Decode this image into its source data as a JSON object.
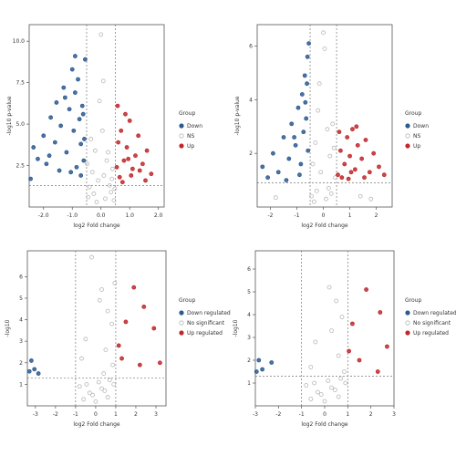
{
  "chart_data": [
    {
      "type": "scatter",
      "title": "",
      "xlabel": "log2 Fold change",
      "ylabel": "-log10 p-value",
      "xlim": [
        -2.5,
        2.2
      ],
      "ylim": [
        0,
        11
      ],
      "xticks": [
        -2.0,
        -1.0,
        0.0,
        1.0,
        2.0
      ],
      "xtick_labels": [
        "-2.0",
        "-1.0",
        "0.0",
        "1.0",
        "2.0"
      ],
      "yticks": [
        2.5,
        5,
        7.5,
        10
      ],
      "ytick_labels": [
        "2.5",
        "5.0",
        "7.5",
        "10.0"
      ],
      "thresholds": {
        "fc_low": -0.5,
        "fc_high": 0.5,
        "y": 1.3
      },
      "legend_title": "Group",
      "legend_position": "right",
      "series": [
        {
          "name": "Down",
          "color": "#2d5a91",
          "points": [
            [
              -2.35,
              3.6
            ],
            [
              -2.2,
              2.9
            ],
            [
              -2.0,
              4.3
            ],
            [
              -1.9,
              2.6
            ],
            [
              -1.75,
              5.4
            ],
            [
              -1.6,
              3.9
            ],
            [
              -1.55,
              6.3
            ],
            [
              -1.4,
              4.9
            ],
            [
              -1.3,
              7.2
            ],
            [
              -1.2,
              3.3
            ],
            [
              -1.1,
              5.9
            ],
            [
              -1.0,
              8.3
            ],
            [
              -0.95,
              4.6
            ],
            [
              -0.9,
              6.9
            ],
            [
              -0.85,
              2.4
            ],
            [
              -0.8,
              7.7
            ],
            [
              -0.75,
              5.3
            ],
            [
              -0.7,
              3.8
            ],
            [
              -0.65,
              6.1
            ],
            [
              -0.6,
              2.8
            ],
            [
              -0.58,
              4.1
            ],
            [
              -0.55,
              8.9
            ],
            [
              -1.45,
              2.2
            ],
            [
              -1.05,
              2.1
            ],
            [
              -0.7,
              1.9
            ],
            [
              -1.8,
              3.1
            ],
            [
              -1.25,
              6.6
            ],
            [
              -0.9,
              9.1
            ],
            [
              -2.45,
              1.7
            ],
            [
              -0.62,
              5.6
            ]
          ]
        },
        {
          "name": "NS",
          "color": "#b7b7b7",
          "points": [
            [
              -0.4,
              1.2
            ],
            [
              -0.3,
              2.1
            ],
            [
              -0.2,
              3.4
            ],
            [
              -0.1,
              1.6
            ],
            [
              0.0,
              10.4
            ],
            [
              0.05,
              4.6
            ],
            [
              0.1,
              1.9
            ],
            [
              0.2,
              2.8
            ],
            [
              0.3,
              1.3
            ],
            [
              0.4,
              2.3
            ],
            [
              -0.45,
              0.6
            ],
            [
              -0.25,
              0.8
            ],
            [
              0.15,
              0.5
            ],
            [
              0.35,
              0.9
            ],
            [
              -0.05,
              6.4
            ],
            [
              0.45,
              0.4
            ],
            [
              -0.35,
              4.1
            ],
            [
              0.25,
              3.3
            ],
            [
              -0.15,
              0.3
            ],
            [
              0.08,
              7.6
            ],
            [
              0.38,
              1.7
            ],
            [
              -0.48,
              2.6
            ],
            [
              0.48,
              1.1
            ]
          ]
        },
        {
          "name": "Up",
          "color": "#c0282b",
          "points": [
            [
              0.55,
              2.4
            ],
            [
              0.6,
              3.9
            ],
            [
              0.7,
              4.6
            ],
            [
              0.8,
              2.8
            ],
            [
              0.9,
              3.6
            ],
            [
              1.0,
              5.2
            ],
            [
              1.1,
              2.3
            ],
            [
              1.2,
              3.1
            ],
            [
              1.3,
              4.3
            ],
            [
              1.45,
              2.6
            ],
            [
              1.6,
              3.4
            ],
            [
              1.75,
              2.0
            ],
            [
              0.65,
              1.8
            ],
            [
              0.85,
              5.6
            ],
            [
              1.05,
              1.9
            ],
            [
              1.35,
              2.2
            ],
            [
              0.58,
              6.1
            ],
            [
              0.95,
              2.9
            ],
            [
              1.55,
              1.6
            ],
            [
              0.75,
              1.5
            ]
          ]
        }
      ]
    },
    {
      "type": "scatter",
      "title": "",
      "xlabel": "log2 Fold change",
      "ylabel": "-log10 p-value",
      "xlim": [
        -2.5,
        2.6
      ],
      "ylim": [
        0,
        6.8
      ],
      "xticks": [
        -2,
        -1,
        0,
        1,
        2
      ],
      "xtick_labels": [
        "-2",
        "-1",
        "0",
        "1",
        "2"
      ],
      "yticks": [
        2,
        4,
        6
      ],
      "ytick_labels": [
        "2",
        "4",
        "6"
      ],
      "thresholds": {
        "fc_low": -0.5,
        "fc_high": 0.5,
        "y": 0.9
      },
      "legend_title": "Group",
      "legend_position": "right",
      "series": [
        {
          "name": "Down",
          "color": "#2d5a91",
          "points": [
            [
              -2.3,
              1.5
            ],
            [
              -2.1,
              1.1
            ],
            [
              -1.9,
              2.0
            ],
            [
              -1.7,
              1.3
            ],
            [
              -1.5,
              2.6
            ],
            [
              -1.3,
              1.8
            ],
            [
              -1.2,
              3.1
            ],
            [
              -1.05,
              2.3
            ],
            [
              -0.95,
              3.7
            ],
            [
              -0.85,
              1.6
            ],
            [
              -0.8,
              4.2
            ],
            [
              -0.75,
              2.8
            ],
            [
              -0.7,
              4.9
            ],
            [
              -0.65,
              3.3
            ],
            [
              -0.6,
              5.6
            ],
            [
              -0.58,
              2.1
            ],
            [
              -0.55,
              6.1
            ],
            [
              -0.9,
              1.2
            ],
            [
              -1.4,
              1.0
            ],
            [
              -0.68,
              3.9
            ],
            [
              -1.1,
              2.6
            ],
            [
              -0.62,
              4.6
            ]
          ]
        },
        {
          "name": "NS",
          "color": "#b7b7b7",
          "points": [
            [
              -0.4,
              1.6
            ],
            [
              -0.3,
              2.4
            ],
            [
              -0.2,
              3.6
            ],
            [
              -0.1,
              1.3
            ],
            [
              0.0,
              6.5
            ],
            [
              0.05,
              5.9
            ],
            [
              0.15,
              2.9
            ],
            [
              0.25,
              1.9
            ],
            [
              0.35,
              3.1
            ],
            [
              0.45,
              1.1
            ],
            [
              -0.45,
              0.4
            ],
            [
              -0.25,
              0.6
            ],
            [
              0.1,
              0.3
            ],
            [
              0.3,
              0.5
            ],
            [
              -0.15,
              4.6
            ],
            [
              0.4,
              2.2
            ],
            [
              -0.35,
              0.2
            ],
            [
              0.2,
              0.7
            ],
            [
              1.4,
              0.4
            ],
            [
              1.8,
              0.3
            ],
            [
              -1.8,
              0.35
            ]
          ]
        },
        {
          "name": "Up",
          "color": "#c0282b",
          "points": [
            [
              0.55,
              1.2
            ],
            [
              0.65,
              2.1
            ],
            [
              0.8,
              1.6
            ],
            [
              0.9,
              2.6
            ],
            [
              1.0,
              1.9
            ],
            [
              1.1,
              2.9
            ],
            [
              1.2,
              1.4
            ],
            [
              1.3,
              2.3
            ],
            [
              1.45,
              1.8
            ],
            [
              1.6,
              2.5
            ],
            [
              1.75,
              1.3
            ],
            [
              1.9,
              2.0
            ],
            [
              2.1,
              1.5
            ],
            [
              0.7,
              1.1
            ],
            [
              1.05,
              1.3
            ],
            [
              1.55,
              1.1
            ],
            [
              0.6,
              2.8
            ],
            [
              1.25,
              3.0
            ],
            [
              2.3,
              1.2
            ],
            [
              0.95,
              1.05
            ]
          ]
        }
      ]
    },
    {
      "type": "scatter",
      "title": "",
      "xlabel": "log2 Fold change",
      "ylabel": "-log10",
      "xlim": [
        -3.4,
        3.5
      ],
      "ylim": [
        0,
        7.2
      ],
      "xticks": [
        -3,
        -2,
        -1,
        0,
        1,
        2,
        3
      ],
      "xtick_labels": [
        "-3",
        "-2",
        "-1",
        "0",
        "1",
        "2",
        "3"
      ],
      "yticks": [
        1,
        2,
        3,
        4,
        5,
        6
      ],
      "ytick_labels": [
        "1",
        "2",
        "3",
        "4",
        "5",
        "6"
      ],
      "thresholds": {
        "fc_low": -1,
        "fc_high": 1,
        "y": 1.3
      },
      "legend_title": "Group",
      "legend_position": "right",
      "series": [
        {
          "name": "Down regulated",
          "color": "#2d5a91",
          "points": [
            [
              -3.2,
              2.1
            ],
            [
              -3.05,
              1.7
            ],
            [
              -2.85,
              1.5
            ],
            [
              -3.3,
              1.6
            ]
          ]
        },
        {
          "name": "No significant",
          "color": "#b7b7b7",
          "points": [
            [
              -0.6,
              0.3
            ],
            [
              -0.3,
              0.6
            ],
            [
              0.0,
              0.2
            ],
            [
              0.3,
              0.8
            ],
            [
              0.6,
              0.4
            ],
            [
              0.9,
              1.0
            ],
            [
              -0.8,
              0.9
            ],
            [
              0.15,
              1.1
            ],
            [
              -0.15,
              0.5
            ],
            [
              0.7,
              1.2
            ],
            [
              -0.45,
              1.0
            ],
            [
              0.45,
              0.7
            ],
            [
              -0.2,
              6.9
            ],
            [
              0.3,
              5.4
            ],
            [
              0.6,
              4.4
            ],
            [
              0.8,
              3.8
            ],
            [
              0.2,
              4.9
            ],
            [
              -0.5,
              3.1
            ],
            [
              0.5,
              2.6
            ],
            [
              0.95,
              5.7
            ],
            [
              -0.7,
              2.2
            ],
            [
              0.85,
              1.9
            ],
            [
              0.4,
              1.5
            ]
          ]
        },
        {
          "name": "Up regulated",
          "color": "#c0282b",
          "points": [
            [
              1.9,
              5.5
            ],
            [
              2.4,
              4.6
            ],
            [
              1.5,
              3.9
            ],
            [
              2.9,
              3.6
            ],
            [
              1.3,
              2.2
            ],
            [
              2.2,
              1.9
            ],
            [
              3.2,
              2.0
            ],
            [
              1.15,
              2.8
            ]
          ]
        }
      ]
    },
    {
      "type": "scatter",
      "title": "",
      "xlabel": "log2 Fold change",
      "ylabel": "-log10",
      "xlim": [
        -3.0,
        3.0
      ],
      "ylim": [
        0,
        6.8
      ],
      "xticks": [
        -3,
        -2,
        -1,
        0,
        1,
        2,
        3
      ],
      "xtick_labels": [
        "-3",
        "-2",
        "-1",
        "0",
        "1",
        "2",
        "3"
      ],
      "yticks": [
        1,
        2,
        3,
        4,
        5,
        6
      ],
      "ytick_labels": [
        "1",
        "2",
        "3",
        "4",
        "5",
        "6"
      ],
      "thresholds": {
        "fc_low": -1,
        "fc_high": 1,
        "y": 1.3
      },
      "legend_title": "Group",
      "legend_position": "right",
      "series": [
        {
          "name": "Down regulated",
          "color": "#2d5a91",
          "points": [
            [
              -2.85,
              2.0
            ],
            [
              -2.7,
              1.6
            ],
            [
              -2.3,
              1.9
            ],
            [
              -2.95,
              1.5
            ]
          ]
        },
        {
          "name": "No significant",
          "color": "#b7b7b7",
          "points": [
            [
              -0.6,
              0.3
            ],
            [
              -0.3,
              0.6
            ],
            [
              0.0,
              0.2
            ],
            [
              0.3,
              0.8
            ],
            [
              0.6,
              0.4
            ],
            [
              0.9,
              1.0
            ],
            [
              -0.8,
              0.9
            ],
            [
              0.15,
              1.1
            ],
            [
              -0.15,
              0.5
            ],
            [
              0.7,
              1.2
            ],
            [
              -0.45,
              1.0
            ],
            [
              0.45,
              0.7
            ],
            [
              0.2,
              5.2
            ],
            [
              0.5,
              4.6
            ],
            [
              0.75,
              3.9
            ],
            [
              0.3,
              3.3
            ],
            [
              -0.4,
              2.8
            ],
            [
              0.6,
              2.2
            ],
            [
              -0.6,
              1.7
            ],
            [
              0.85,
              1.5
            ]
          ]
        },
        {
          "name": "Up regulated",
          "color": "#c0282b",
          "points": [
            [
              1.8,
              5.1
            ],
            [
              2.4,
              4.1
            ],
            [
              1.2,
              3.6
            ],
            [
              2.7,
              2.6
            ],
            [
              1.5,
              2.0
            ],
            [
              2.3,
              1.5
            ],
            [
              1.05,
              2.4
            ]
          ]
        }
      ]
    }
  ]
}
